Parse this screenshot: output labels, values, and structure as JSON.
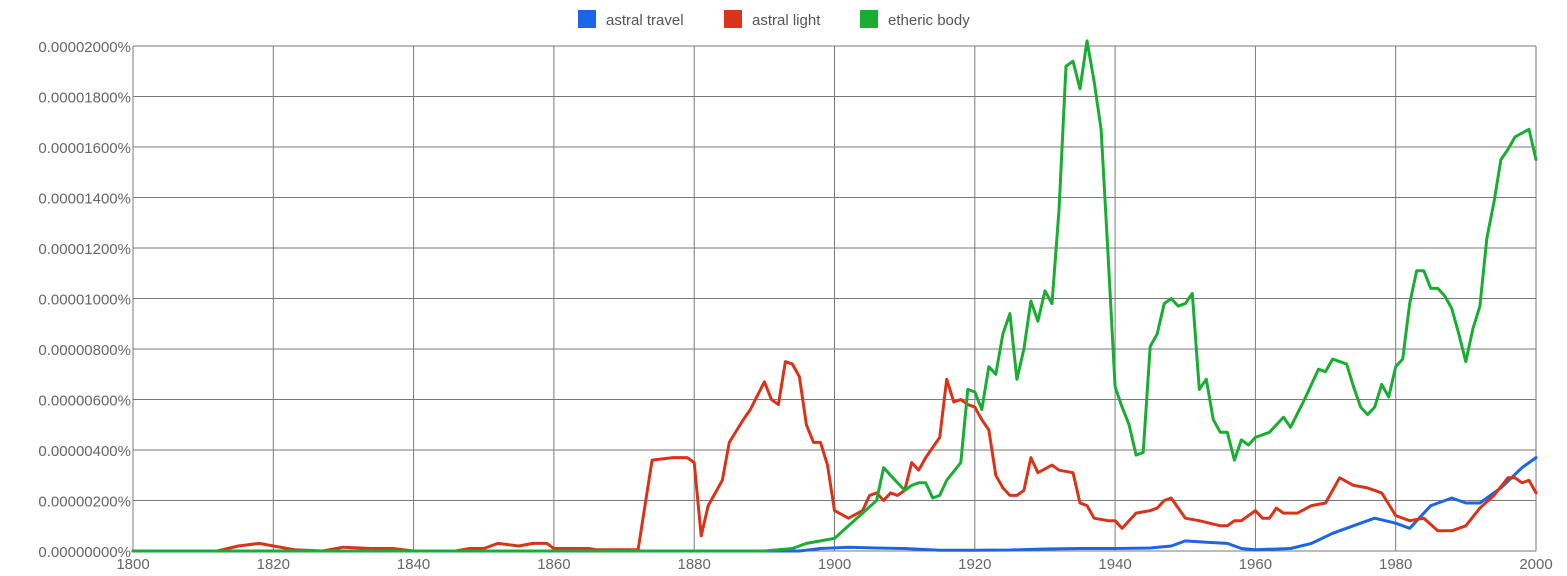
{
  "chart_data": {
    "type": "line",
    "title": "",
    "xlabel": "",
    "ylabel": "",
    "xlim": [
      1800,
      2000
    ],
    "ylim": [
      0,
      2e-05
    ],
    "grid": true,
    "legend_position": "top-center",
    "x_ticks": [
      "1800",
      "1820",
      "1840",
      "1860",
      "1880",
      "1900",
      "1920",
      "1940",
      "1960",
      "1980",
      "2000"
    ],
    "y_ticks": [
      "0.00000000%",
      "0.00000200%",
      "0.00000400%",
      "0.00000600%",
      "0.00000800%",
      "0.00001000%",
      "0.00001200%",
      "0.00001400%",
      "0.00001600%",
      "0.00001800%",
      "0.00002000%"
    ],
    "series": [
      {
        "name": "astral travel",
        "color": "#1a66e6",
        "points": [
          [
            1800,
            0
          ],
          [
            1895,
            0
          ],
          [
            1898,
            1e-07
          ],
          [
            1902,
            1.5e-07
          ],
          [
            1906,
            1.2e-07
          ],
          [
            1910,
            1e-07
          ],
          [
            1915,
            3e-08
          ],
          [
            1920,
            3e-08
          ],
          [
            1925,
            4e-08
          ],
          [
            1930,
            8e-08
          ],
          [
            1935,
            1e-07
          ],
          [
            1940,
            1e-07
          ],
          [
            1945,
            1.2e-07
          ],
          [
            1948,
            2e-07
          ],
          [
            1950,
            4e-07
          ],
          [
            1953,
            3.5e-07
          ],
          [
            1956,
            3e-07
          ],
          [
            1958,
            1e-07
          ],
          [
            1960,
            5e-08
          ],
          [
            1965,
            1e-07
          ],
          [
            1968,
            3e-07
          ],
          [
            1971,
            7e-07
          ],
          [
            1975,
            1.1e-06
          ],
          [
            1977,
            1.3e-06
          ],
          [
            1980,
            1.1e-06
          ],
          [
            1982,
            9e-07
          ],
          [
            1985,
            1.8e-06
          ],
          [
            1988,
            2.1e-06
          ],
          [
            1990,
            1.9e-06
          ],
          [
            1992,
            1.9e-06
          ],
          [
            1995,
            2.5e-06
          ],
          [
            1998,
            3.3e-06
          ],
          [
            2000,
            3.7e-06
          ]
        ]
      },
      {
        "name": "astral light",
        "color": "#d9331a",
        "points": [
          [
            1800,
            0
          ],
          [
            1812,
            0
          ],
          [
            1815,
            2e-07
          ],
          [
            1818,
            3e-07
          ],
          [
            1820,
            2e-07
          ],
          [
            1823,
            5e-08
          ],
          [
            1827,
            0
          ],
          [
            1830,
            1.5e-07
          ],
          [
            1834,
            1e-07
          ],
          [
            1837,
            1e-07
          ],
          [
            1840,
            0
          ],
          [
            1846,
            0
          ],
          [
            1848,
            1e-07
          ],
          [
            1850,
            1e-07
          ],
          [
            1852,
            3e-07
          ],
          [
            1855,
            2e-07
          ],
          [
            1857,
            3e-07
          ],
          [
            1859,
            3e-07
          ],
          [
            1860,
            1e-07
          ],
          [
            1865,
            1e-07
          ],
          [
            1866,
            5e-08
          ],
          [
            1872,
            5e-08
          ],
          [
            1874,
            3.6e-06
          ],
          [
            1877,
            3.7e-06
          ],
          [
            1879,
            3.7e-06
          ],
          [
            1880,
            3.5e-06
          ],
          [
            1881,
            6e-07
          ],
          [
            1882,
            1.8e-06
          ],
          [
            1884,
            2.8e-06
          ],
          [
            1885,
            4.3e-06
          ],
          [
            1887,
            5.2e-06
          ],
          [
            1888,
            5.6e-06
          ],
          [
            1890,
            6.7e-06
          ],
          [
            1891,
            6e-06
          ],
          [
            1892,
            5.8e-06
          ],
          [
            1893,
            7.5e-06
          ],
          [
            1894,
            7.4e-06
          ],
          [
            1895,
            6.9e-06
          ],
          [
            1896,
            5e-06
          ],
          [
            1897,
            4.3e-06
          ],
          [
            1898,
            4.3e-06
          ],
          [
            1899,
            3.4e-06
          ],
          [
            1900,
            1.6e-06
          ],
          [
            1902,
            1.3e-06
          ],
          [
            1904,
            1.6e-06
          ],
          [
            1905,
            2.2e-06
          ],
          [
            1906,
            2.3e-06
          ],
          [
            1907,
            2e-06
          ],
          [
            1908,
            2.3e-06
          ],
          [
            1909,
            2.2e-06
          ],
          [
            1910,
            2.4e-06
          ],
          [
            1911,
            3.5e-06
          ],
          [
            1912,
            3.2e-06
          ],
          [
            1913,
            3.7e-06
          ],
          [
            1914,
            4.1e-06
          ],
          [
            1915,
            4.5e-06
          ],
          [
            1916,
            6.8e-06
          ],
          [
            1917,
            5.9e-06
          ],
          [
            1918,
            6e-06
          ],
          [
            1919,
            5.8e-06
          ],
          [
            1920,
            5.7e-06
          ],
          [
            1921,
            5.2e-06
          ],
          [
            1922,
            4.8e-06
          ],
          [
            1923,
            3e-06
          ],
          [
            1924,
            2.5e-06
          ],
          [
            1925,
            2.2e-06
          ],
          [
            1926,
            2.2e-06
          ],
          [
            1927,
            2.4e-06
          ],
          [
            1928,
            3.7e-06
          ],
          [
            1929,
            3.1e-06
          ],
          [
            1931,
            3.4e-06
          ],
          [
            1932,
            3.2e-06
          ],
          [
            1934,
            3.1e-06
          ],
          [
            1935,
            1.9e-06
          ],
          [
            1936,
            1.8e-06
          ],
          [
            1937,
            1.3e-06
          ],
          [
            1939,
            1.2e-06
          ],
          [
            1940,
            1.2e-06
          ],
          [
            1941,
            9e-07
          ],
          [
            1943,
            1.5e-06
          ],
          [
            1945,
            1.6e-06
          ],
          [
            1946,
            1.7e-06
          ],
          [
            1947,
            2e-06
          ],
          [
            1948,
            2.1e-06
          ],
          [
            1950,
            1.3e-06
          ],
          [
            1952,
            1.2e-06
          ],
          [
            1955,
            1e-06
          ],
          [
            1956,
            1e-06
          ],
          [
            1957,
            1.2e-06
          ],
          [
            1958,
            1.2e-06
          ],
          [
            1960,
            1.6e-06
          ],
          [
            1961,
            1.3e-06
          ],
          [
            1962,
            1.3e-06
          ],
          [
            1963,
            1.7e-06
          ],
          [
            1964,
            1.5e-06
          ],
          [
            1966,
            1.5e-06
          ],
          [
            1968,
            1.8e-06
          ],
          [
            1970,
            1.9e-06
          ],
          [
            1972,
            2.9e-06
          ],
          [
            1974,
            2.6e-06
          ],
          [
            1976,
            2.5e-06
          ],
          [
            1978,
            2.3e-06
          ],
          [
            1980,
            1.4e-06
          ],
          [
            1982,
            1.2e-06
          ],
          [
            1984,
            1.3e-06
          ],
          [
            1986,
            8e-07
          ],
          [
            1988,
            8e-07
          ],
          [
            1990,
            1e-06
          ],
          [
            1992,
            1.7e-06
          ],
          [
            1994,
            2.2e-06
          ],
          [
            1996,
            2.9e-06
          ],
          [
            1997,
            2.9e-06
          ],
          [
            1998,
            2.7e-06
          ],
          [
            1999,
            2.8e-06
          ],
          [
            2000,
            2.3e-06
          ]
        ]
      },
      {
        "name": "etheric body",
        "color": "#1aad33",
        "points": [
          [
            1800,
            0
          ],
          [
            1890,
            0
          ],
          [
            1894,
            1e-07
          ],
          [
            1896,
            3e-07
          ],
          [
            1898,
            4e-07
          ],
          [
            1900,
            5e-07
          ],
          [
            1902,
            1e-06
          ],
          [
            1904,
            1.5e-06
          ],
          [
            1906,
            2e-06
          ],
          [
            1907,
            3.3e-06
          ],
          [
            1908,
            3e-06
          ],
          [
            1909,
            2.7e-06
          ],
          [
            1910,
            2.4e-06
          ],
          [
            1911,
            2.6e-06
          ],
          [
            1912,
            2.7e-06
          ],
          [
            1913,
            2.7e-06
          ],
          [
            1914,
            2.1e-06
          ],
          [
            1915,
            2.2e-06
          ],
          [
            1916,
            2.8e-06
          ],
          [
            1918,
            3.5e-06
          ],
          [
            1919,
            6.4e-06
          ],
          [
            1920,
            6.3e-06
          ],
          [
            1921,
            5.6e-06
          ],
          [
            1922,
            7.3e-06
          ],
          [
            1923,
            7e-06
          ],
          [
            1924,
            8.6e-06
          ],
          [
            1925,
            9.4e-06
          ],
          [
            1926,
            6.8e-06
          ],
          [
            1927,
            8e-06
          ],
          [
            1928,
            9.9e-06
          ],
          [
            1929,
            9.1e-06
          ],
          [
            1930,
            1.03e-05
          ],
          [
            1931,
            9.8e-06
          ],
          [
            1932,
            1.35e-05
          ],
          [
            1933,
            1.92e-05
          ],
          [
            1934,
            1.94e-05
          ],
          [
            1935,
            1.83e-05
          ],
          [
            1936,
            2.02e-05
          ],
          [
            1937,
            1.86e-05
          ],
          [
            1938,
            1.67e-05
          ],
          [
            1939,
            1.17e-05
          ],
          [
            1940,
            6.5e-06
          ],
          [
            1941,
            5.7e-06
          ],
          [
            1942,
            5e-06
          ],
          [
            1943,
            3.8e-06
          ],
          [
            1944,
            3.9e-06
          ],
          [
            1945,
            8.1e-06
          ],
          [
            1946,
            8.6e-06
          ],
          [
            1947,
            9.8e-06
          ],
          [
            1948,
            1e-05
          ],
          [
            1949,
            9.7e-06
          ],
          [
            1950,
            9.8e-06
          ],
          [
            1951,
            1.02e-05
          ],
          [
            1952,
            6.4e-06
          ],
          [
            1953,
            6.8e-06
          ],
          [
            1954,
            5.2e-06
          ],
          [
            1955,
            4.7e-06
          ],
          [
            1956,
            4.7e-06
          ],
          [
            1957,
            3.6e-06
          ],
          [
            1958,
            4.4e-06
          ],
          [
            1959,
            4.2e-06
          ],
          [
            1960,
            4.5e-06
          ],
          [
            1962,
            4.7e-06
          ],
          [
            1964,
            5.3e-06
          ],
          [
            1965,
            4.9e-06
          ],
          [
            1967,
            6e-06
          ],
          [
            1969,
            7.2e-06
          ],
          [
            1970,
            7.1e-06
          ],
          [
            1971,
            7.6e-06
          ],
          [
            1973,
            7.4e-06
          ],
          [
            1974,
            6.5e-06
          ],
          [
            1975,
            5.7e-06
          ],
          [
            1976,
            5.4e-06
          ],
          [
            1977,
            5.7e-06
          ],
          [
            1978,
            6.6e-06
          ],
          [
            1979,
            6.1e-06
          ],
          [
            1980,
            7.3e-06
          ],
          [
            1981,
            7.6e-06
          ],
          [
            1982,
            9.8e-06
          ],
          [
            1983,
            1.11e-05
          ],
          [
            1984,
            1.11e-05
          ],
          [
            1985,
            1.04e-05
          ],
          [
            1986,
            1.04e-05
          ],
          [
            1987,
            1.01e-05
          ],
          [
            1988,
            9.6e-06
          ],
          [
            1989,
            8.6e-06
          ],
          [
            1990,
            7.5e-06
          ],
          [
            1991,
            8.8e-06
          ],
          [
            1992,
            9.7e-06
          ],
          [
            1993,
            1.24e-05
          ],
          [
            1994,
            1.38e-05
          ],
          [
            1995,
            1.55e-05
          ],
          [
            1996,
            1.59e-05
          ],
          [
            1997,
            1.64e-05
          ],
          [
            1999,
            1.67e-05
          ],
          [
            2000,
            1.55e-05
          ]
        ]
      }
    ]
  }
}
